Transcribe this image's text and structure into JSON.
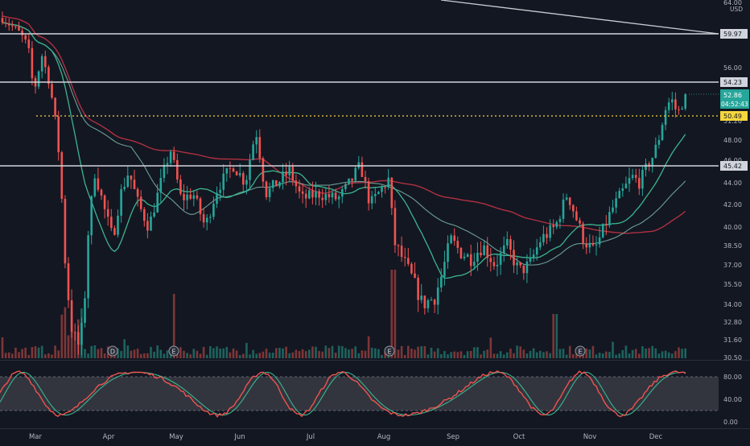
{
  "chart_data": {
    "type": "candlestick",
    "currency": "USD",
    "price_axis": {
      "ticks": [
        "56.00",
        "51.20",
        "48.00",
        "46.00",
        "44.00",
        "42.00",
        "40.00",
        "38.50",
        "37.00",
        "35.50",
        "34.00",
        "32.80",
        "31.60",
        "30.50"
      ],
      "top_label": "64.00"
    },
    "horizontal_levels": [
      {
        "label": "59.97",
        "value": 59.97,
        "style": "solid"
      },
      {
        "label": "54.23",
        "value": 54.23,
        "style": "solid"
      },
      {
        "label": "45.42",
        "value": 45.42,
        "style": "solid"
      },
      {
        "label": "50.49",
        "value": 50.49,
        "style": "dotted"
      }
    ],
    "last_price": {
      "label": "52.86",
      "value": 52.86,
      "countdown": "04:52:43"
    },
    "x_labels": [
      "Mar",
      "Apr",
      "May",
      "Jun",
      "Jul",
      "Aug",
      "Sep",
      "Oct",
      "Nov",
      "Dec"
    ],
    "earnings_markers": [
      {
        "label": "D",
        "month": "Apr"
      },
      {
        "label": "E",
        "month": "May"
      },
      {
        "label": "E",
        "month": "Aug"
      },
      {
        "label": "E",
        "month": "Nov"
      }
    ],
    "oscillator": {
      "ticks": [
        "80.00",
        "40.00",
        "0.00"
      ],
      "upper_band": 80,
      "lower_band": 20
    },
    "colors": {
      "background": "#131722",
      "up": "#26a69a",
      "down": "#ef5350",
      "ma_fast": "#3bb58f",
      "ma_mid": "#6b9e94",
      "ma_slow": "#b03040",
      "level_line": "#d1d4dc",
      "dotted_level": "#f5d63d"
    }
  }
}
